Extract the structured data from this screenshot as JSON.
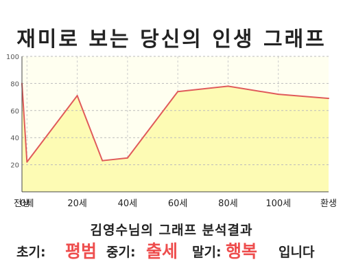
{
  "title": "재미로 보는 당신의 인생 그래프",
  "chart_data": {
    "type": "area",
    "x": [
      -2,
      0,
      20,
      30,
      40,
      60,
      80,
      100,
      120
    ],
    "y": [
      80,
      22,
      71,
      23,
      25,
      74,
      78,
      72,
      69
    ],
    "ylim": [
      0,
      100
    ],
    "yticks": [
      20,
      40,
      60,
      80,
      100
    ],
    "xlim": [
      -2,
      120
    ],
    "xticks": [
      {
        "x": -2,
        "label": "전생"
      },
      {
        "x": 0,
        "label": "0세"
      },
      {
        "x": 20,
        "label": "20세"
      },
      {
        "x": 40,
        "label": "40세"
      },
      {
        "x": 60,
        "label": "60세"
      },
      {
        "x": 80,
        "label": "80세"
      },
      {
        "x": 100,
        "label": "100세"
      },
      {
        "x": 120,
        "label": "환생"
      }
    ],
    "grid": true,
    "line_color": "#e05a5a",
    "fill_color": "#fdfbb4",
    "plot_bg": "#fffff0"
  },
  "result": {
    "subtitle": "김영수님의 그래프 분석결과",
    "early_label": "초기:",
    "early_value": "평범",
    "middle_label": "중기:",
    "middle_value": "출세",
    "late_label": "말기:",
    "late_value": "행복",
    "suffix": "입니다"
  }
}
